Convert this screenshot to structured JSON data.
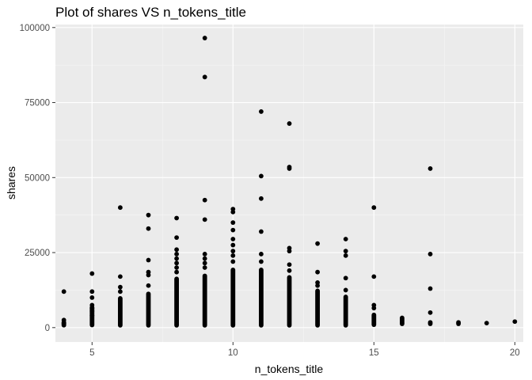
{
  "chart_data": {
    "type": "scatter",
    "title": "Plot of shares VS n_tokens_title",
    "xlabel": "n_tokens_title",
    "ylabel": "shares",
    "xlim": [
      3.7,
      20.3
    ],
    "ylim": [
      -4800,
      101000
    ],
    "x_ticks": [
      5,
      10,
      15,
      20
    ],
    "y_ticks": [
      0,
      25000,
      50000,
      75000,
      100000
    ],
    "x_tick_labels": [
      "5",
      "10",
      "15",
      "20"
    ],
    "y_tick_labels": [
      "0",
      "25000",
      "50000",
      "75000",
      "100000"
    ],
    "grid": true,
    "panel_color": "#ebebeb",
    "point_color": "#000000",
    "columns": [
      {
        "x": 4,
        "y_min": 200,
        "y_max": 2500
      },
      {
        "x": 5,
        "y_min": 100,
        "y_max": 7500
      },
      {
        "x": 6,
        "y_min": 0,
        "y_max": 10500
      },
      {
        "x": 7,
        "y_min": 0,
        "y_max": 12000
      },
      {
        "x": 8,
        "y_min": 0,
        "y_max": 17000
      },
      {
        "x": 9,
        "y_min": 0,
        "y_max": 18000
      },
      {
        "x": 10,
        "y_min": 0,
        "y_max": 20000
      },
      {
        "x": 11,
        "y_min": 0,
        "y_max": 20000
      },
      {
        "x": 12,
        "y_min": 0,
        "y_max": 17500
      },
      {
        "x": 13,
        "y_min": 0,
        "y_max": 13000
      },
      {
        "x": 14,
        "y_min": 0,
        "y_max": 11000
      },
      {
        "x": 15,
        "y_min": 200,
        "y_max": 5000
      },
      {
        "x": 16,
        "y_min": 500,
        "y_max": 4000
      },
      {
        "x": 17,
        "y_min": 500,
        "y_max": 2500
      },
      {
        "x": 18,
        "y_min": 500,
        "y_max": 2500
      }
    ],
    "points": [
      {
        "x": 4,
        "y": 12000
      },
      {
        "x": 4,
        "y": 2500
      },
      {
        "x": 4,
        "y": 1500
      },
      {
        "x": 4,
        "y": 800
      },
      {
        "x": 5,
        "y": 18000
      },
      {
        "x": 5,
        "y": 12000
      },
      {
        "x": 5,
        "y": 10000
      },
      {
        "x": 5,
        "y": 7500
      },
      {
        "x": 5,
        "y": 6500
      },
      {
        "x": 5,
        "y": 5500
      },
      {
        "x": 5,
        "y": 4000
      },
      {
        "x": 6,
        "y": 40000
      },
      {
        "x": 6,
        "y": 17000
      },
      {
        "x": 6,
        "y": 13500
      },
      {
        "x": 6,
        "y": 12000
      },
      {
        "x": 7,
        "y": 37500
      },
      {
        "x": 7,
        "y": 33000
      },
      {
        "x": 7,
        "y": 22500
      },
      {
        "x": 7,
        "y": 18500
      },
      {
        "x": 7,
        "y": 17500
      },
      {
        "x": 7,
        "y": 14000
      },
      {
        "x": 8,
        "y": 36500
      },
      {
        "x": 8,
        "y": 30000
      },
      {
        "x": 8,
        "y": 26000
      },
      {
        "x": 8,
        "y": 24500
      },
      {
        "x": 8,
        "y": 23000
      },
      {
        "x": 8,
        "y": 21500
      },
      {
        "x": 8,
        "y": 20000
      },
      {
        "x": 8,
        "y": 18500
      },
      {
        "x": 9,
        "y": 96500
      },
      {
        "x": 9,
        "y": 83500
      },
      {
        "x": 9,
        "y": 42500
      },
      {
        "x": 9,
        "y": 36000
      },
      {
        "x": 9,
        "y": 24500
      },
      {
        "x": 9,
        "y": 23000
      },
      {
        "x": 9,
        "y": 21500
      },
      {
        "x": 9,
        "y": 20000
      },
      {
        "x": 10,
        "y": 39500
      },
      {
        "x": 10,
        "y": 38500
      },
      {
        "x": 10,
        "y": 35000
      },
      {
        "x": 10,
        "y": 32500
      },
      {
        "x": 10,
        "y": 29500
      },
      {
        "x": 10,
        "y": 27500
      },
      {
        "x": 10,
        "y": 25500
      },
      {
        "x": 10,
        "y": 24000
      },
      {
        "x": 10,
        "y": 22000
      },
      {
        "x": 11,
        "y": 72000
      },
      {
        "x": 11,
        "y": 50500
      },
      {
        "x": 11,
        "y": 43000
      },
      {
        "x": 11,
        "y": 32000
      },
      {
        "x": 11,
        "y": 24500
      },
      {
        "x": 11,
        "y": 22000
      },
      {
        "x": 12,
        "y": 68000
      },
      {
        "x": 12,
        "y": 53500
      },
      {
        "x": 12,
        "y": 53000
      },
      {
        "x": 12,
        "y": 26500
      },
      {
        "x": 12,
        "y": 25500
      },
      {
        "x": 12,
        "y": 21000
      },
      {
        "x": 12,
        "y": 19000
      },
      {
        "x": 13,
        "y": 28000
      },
      {
        "x": 13,
        "y": 18500
      },
      {
        "x": 13,
        "y": 15000
      },
      {
        "x": 13,
        "y": 14000
      },
      {
        "x": 14,
        "y": 29500
      },
      {
        "x": 14,
        "y": 25500
      },
      {
        "x": 14,
        "y": 24000
      },
      {
        "x": 14,
        "y": 16500
      },
      {
        "x": 14,
        "y": 12500
      },
      {
        "x": 15,
        "y": 40000
      },
      {
        "x": 15,
        "y": 17000
      },
      {
        "x": 15,
        "y": 7500
      },
      {
        "x": 15,
        "y": 6500
      },
      {
        "x": 17,
        "y": 53000
      },
      {
        "x": 17,
        "y": 24500
      },
      {
        "x": 17,
        "y": 13000
      },
      {
        "x": 17,
        "y": 5000
      },
      {
        "x": 19,
        "y": 1500
      },
      {
        "x": 20,
        "y": 2000
      }
    ]
  }
}
